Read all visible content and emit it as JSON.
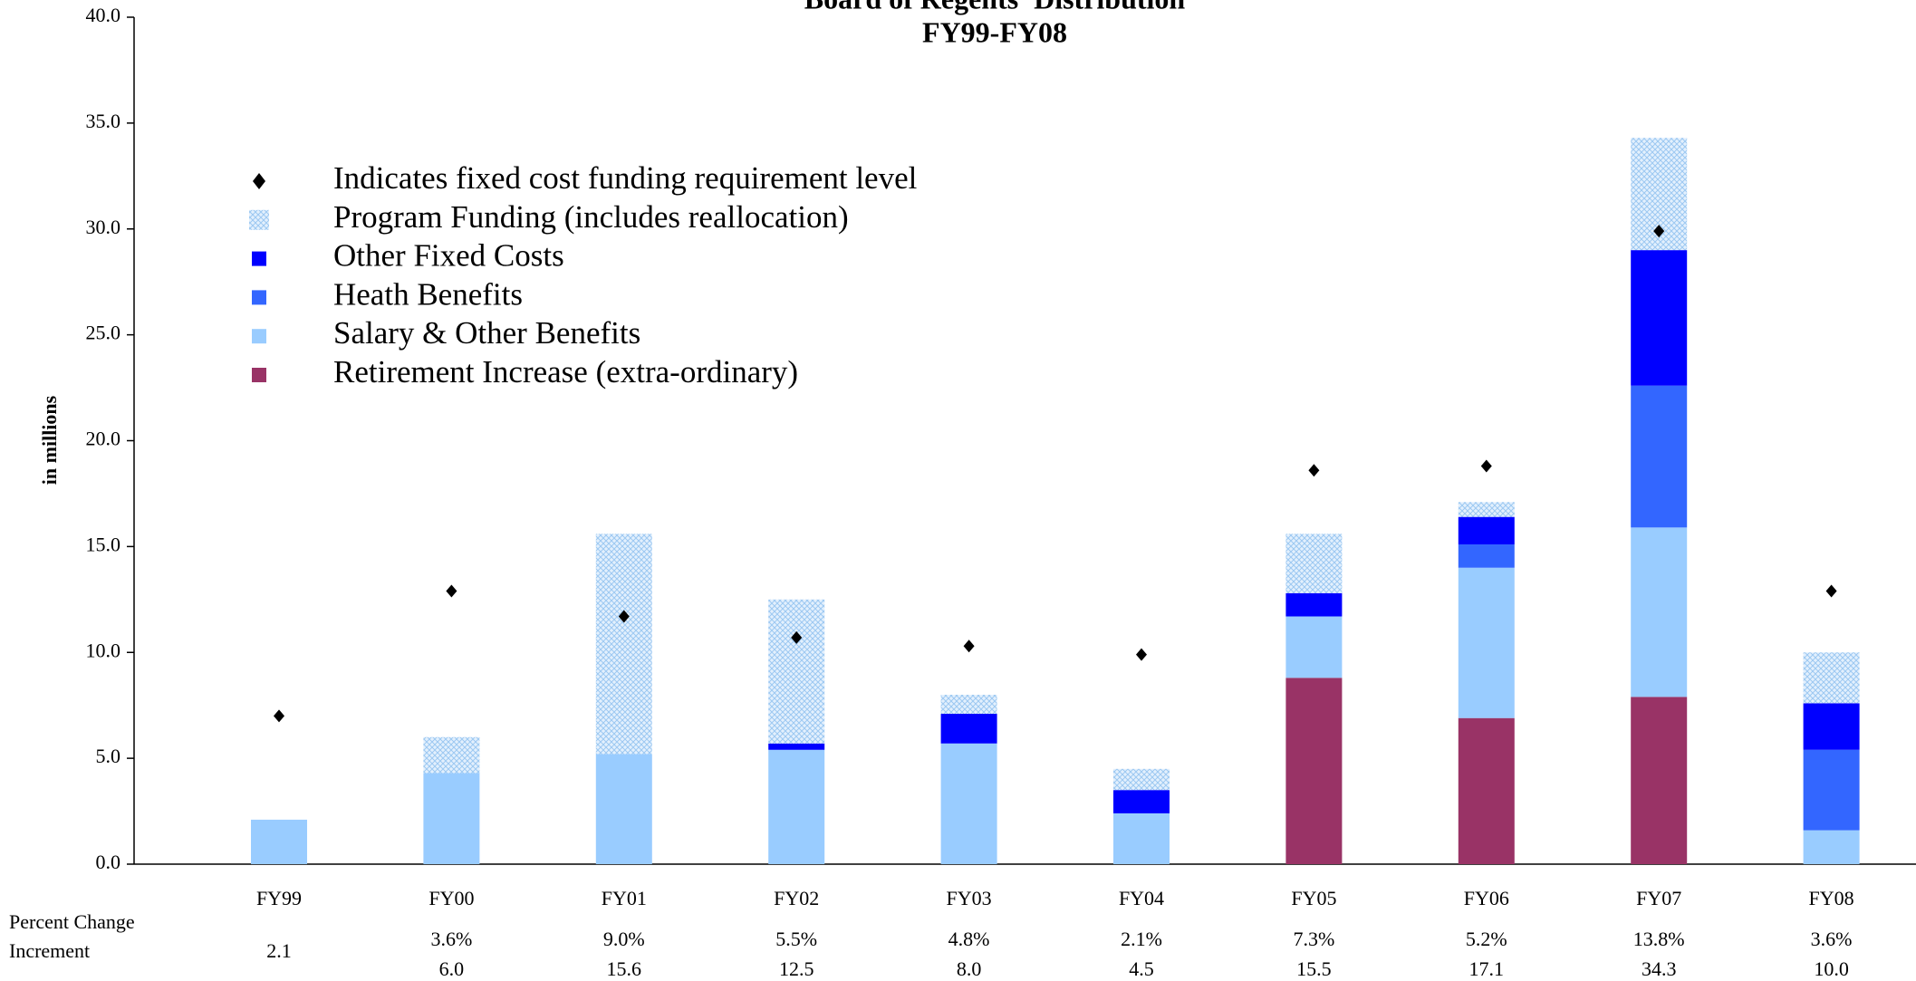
{
  "chart_data": {
    "type": "stacked_bar",
    "title": "Board of Regents' Distribution",
    "subtitle": "FY99-FY08",
    "y_label": "in millions",
    "categories": [
      "FY99",
      "FY00",
      "FY01",
      "FY02",
      "FY03",
      "FY04",
      "FY05",
      "FY06",
      "FY07",
      "FY08"
    ],
    "series": [
      {
        "name": "Retirement Increase (extra-ordinary)",
        "color": "#993366",
        "values": [
          null,
          null,
          null,
          null,
          null,
          null,
          8.8,
          6.9,
          7.9,
          null
        ]
      },
      {
        "name": "Salary & Other Benefits",
        "color": "#99ccff",
        "values": [
          2.1,
          4.3,
          5.2,
          5.4,
          5.7,
          2.4,
          2.9,
          7.1,
          8.0,
          1.6
        ]
      },
      {
        "name": "Heath Benefits",
        "color": "#3366ff",
        "values": [
          null,
          null,
          null,
          null,
          null,
          null,
          null,
          1.1,
          6.7,
          3.8
        ]
      },
      {
        "name": "Other Fixed Costs",
        "color": "#0000ff",
        "values": [
          null,
          null,
          null,
          0.3,
          1.4,
          1.1,
          1.1,
          1.3,
          6.4,
          2.2
        ]
      },
      {
        "name": "Program Funding (includes reallocation)",
        "color": "#cfe6fb",
        "pattern": true,
        "values": [
          null,
          1.7,
          10.4,
          6.8,
          0.9,
          1.0,
          2.8,
          0.7,
          5.3,
          2.4
        ]
      }
    ],
    "markers": {
      "name": "Indicates fixed cost funding requirement level",
      "color": "#000000",
      "values": [
        7.0,
        12.9,
        11.7,
        10.7,
        10.3,
        9.9,
        18.6,
        18.8,
        29.9,
        12.9
      ]
    },
    "ylim": [
      0,
      40
    ],
    "yticks": [
      {
        "value": 0,
        "label": "0.0"
      },
      {
        "value": 5,
        "label": "5.0"
      },
      {
        "value": 10,
        "label": "10.0"
      },
      {
        "value": 15,
        "label": "15.0"
      },
      {
        "value": 20,
        "label": "20.0"
      },
      {
        "value": 25,
        "label": "25.0"
      },
      {
        "value": 30,
        "label": "30.0"
      },
      {
        "value": 35,
        "label": "35.0"
      },
      {
        "value": 40,
        "label": "40.0"
      }
    ],
    "footer": {
      "percent_label": "Percent Change",
      "increment_label": "Increment",
      "percent": [
        null,
        "3.6%",
        "9.0%",
        "5.5%",
        "4.8%",
        "2.1%",
        "7.3%",
        "5.2%",
        "13.8%",
        "3.6%"
      ],
      "increment": [
        "2.1",
        "6.0",
        "15.6",
        "12.5",
        "8.0",
        "4.5",
        "15.5",
        "17.1",
        "34.3",
        "10.0"
      ]
    }
  }
}
